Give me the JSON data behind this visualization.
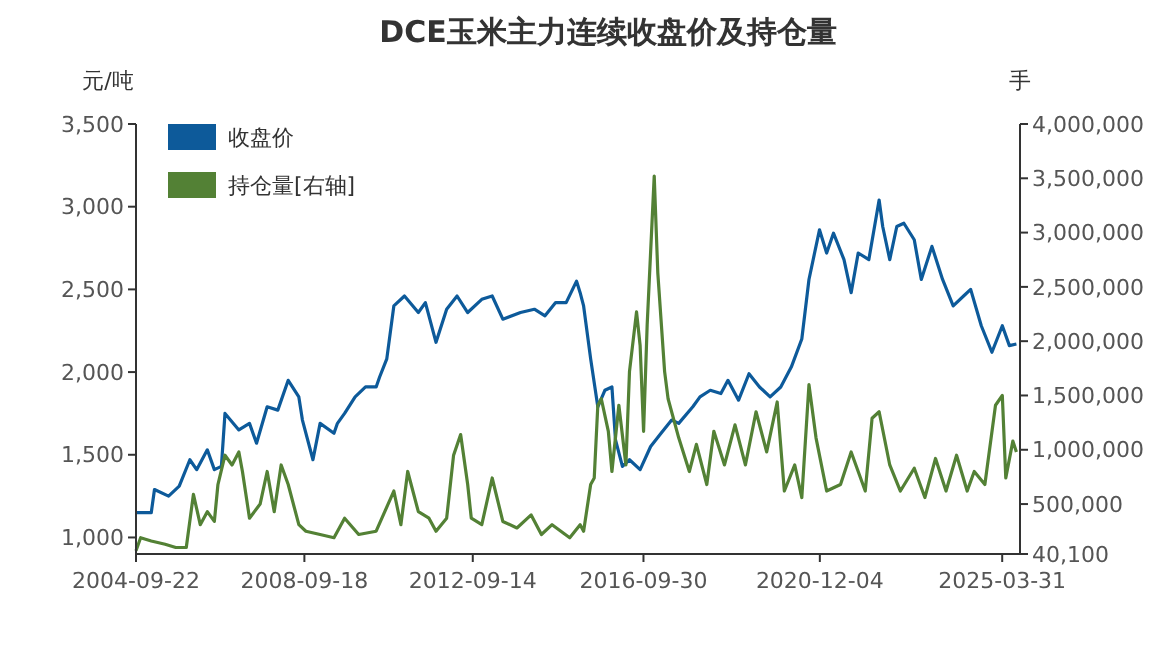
{
  "chart_data": {
    "type": "line",
    "title": "DCE玉米主力连续收盘价及持仓量",
    "ylabel": "元/吨",
    "y2label": "手",
    "legend": "top left",
    "xlim": [
      "2004-09-22",
      "2025-09-01"
    ],
    "xticks": [
      "2004-09-22",
      "2008-09-18",
      "2012-09-14",
      "2016-09-30",
      "2020-12-04",
      "2025-03-31"
    ],
    "ylim": [
      900,
      3500
    ],
    "yticks": [
      {
        "value": 1000,
        "label": "1,000"
      },
      {
        "value": 1500,
        "label": "1,500"
      },
      {
        "value": 2000,
        "label": "2,000"
      },
      {
        "value": 2500,
        "label": "2,500"
      },
      {
        "value": 3000,
        "label": "3,000"
      },
      {
        "value": 3500,
        "label": "3,500"
      }
    ],
    "y2lim": [
      40100,
      4000000
    ],
    "y2ticks": [
      {
        "value": 40100,
        "label": "40,100"
      },
      {
        "value": 500000,
        "label": "500,000"
      },
      {
        "value": 1000000,
        "label": "1,000,000"
      },
      {
        "value": 1500000,
        "label": "1,500,000"
      },
      {
        "value": 2000000,
        "label": "2,000,000"
      },
      {
        "value": 2500000,
        "label": "2,500,000"
      },
      {
        "value": 3000000,
        "label": "3,000,000"
      },
      {
        "value": 3500000,
        "label": "3,500,000"
      },
      {
        "value": 4000000,
        "label": "4,000,000"
      }
    ],
    "series": [
      {
        "name": "收盘价",
        "color": "#0d5a9a",
        "x": [
          "2004-09-22",
          "2005-02",
          "2005-03",
          "2005-07",
          "2005-10",
          "2006-01",
          "2006-03",
          "2006-06",
          "2006-08",
          "2006-10",
          "2006-11",
          "2007-03",
          "2007-06",
          "2007-08",
          "2007-11",
          "2008-02",
          "2008-05",
          "2008-08",
          "2008-09",
          "2008-12",
          "2009-02",
          "2009-06",
          "2009-07",
          "2009-09",
          "2009-12",
          "2010-03",
          "2010-06",
          "2010-07",
          "2010-09",
          "2010-11",
          "2011-02",
          "2011-06",
          "2011-08",
          "2011-11",
          "2012-02",
          "2012-05",
          "2012-08",
          "2012-12",
          "2013-03",
          "2013-06",
          "2013-11",
          "2014-03",
          "2014-06",
          "2014-09",
          "2014-12",
          "2015-03",
          "2015-04",
          "2015-05",
          "2015-07",
          "2015-09",
          "2015-11",
          "2016-01",
          "2016-02",
          "2016-04",
          "2016-06",
          "2016-09",
          "2016-12",
          "2017-03",
          "2017-06",
          "2017-08",
          "2017-12",
          "2018-02",
          "2018-05",
          "2018-08",
          "2018-10",
          "2019-01",
          "2019-04",
          "2019-07",
          "2019-10",
          "2020-01",
          "2020-04",
          "2020-07",
          "2020-09",
          "2020-12",
          "2021-02",
          "2021-04",
          "2021-07",
          "2021-09",
          "2021-11",
          "2022-02",
          "2022-05",
          "2022-06",
          "2022-08",
          "2022-10",
          "2022-12",
          "2023-03",
          "2023-05",
          "2023-08",
          "2023-11",
          "2024-02",
          "2024-05",
          "2024-07",
          "2024-10",
          "2025-01",
          "2025-04",
          "2025-06",
          "2025-08"
        ],
        "values": [
          1150,
          1150,
          1290,
          1250,
          1310,
          1470,
          1410,
          1530,
          1410,
          1430,
          1750,
          1650,
          1690,
          1570,
          1790,
          1770,
          1950,
          1850,
          1710,
          1470,
          1690,
          1630,
          1690,
          1750,
          1850,
          1910,
          1910,
          1970,
          2080,
          2400,
          2460,
          2360,
          2420,
          2180,
          2380,
          2460,
          2360,
          2440,
          2460,
          2320,
          2360,
          2380,
          2340,
          2420,
          2420,
          2550,
          2480,
          2400,
          2080,
          1790,
          1890,
          1910,
          1590,
          1430,
          1470,
          1410,
          1550,
          1630,
          1710,
          1690,
          1790,
          1850,
          1890,
          1870,
          1950,
          1830,
          1990,
          1910,
          1850,
          1910,
          2030,
          2200,
          2560,
          2860,
          2720,
          2840,
          2680,
          2480,
          2720,
          2680,
          3040,
          2880,
          2680,
          2880,
          2900,
          2800,
          2560,
          2760,
          2560,
          2400,
          2460,
          2500,
          2280,
          2120,
          2280,
          2160,
          2170
        ]
      },
      {
        "name": "持仓量[右轴]",
        "color": "#538135",
        "axis": "y2",
        "x": [
          "2004-09-22",
          "2004-11",
          "2005-02",
          "2005-06",
          "2005-09",
          "2005-12",
          "2006-02",
          "2006-04",
          "2006-06",
          "2006-08",
          "2006-09",
          "2006-11",
          "2007-01",
          "2007-03",
          "2007-04",
          "2007-06",
          "2007-09",
          "2007-11",
          "2008-01",
          "2008-03",
          "2008-05",
          "2008-08",
          "2008-10",
          "2009-02",
          "2009-06",
          "2009-09",
          "2010-01",
          "2010-06",
          "2010-11",
          "2011-01",
          "2011-03",
          "2011-06",
          "2011-09",
          "2011-11",
          "2012-02",
          "2012-04",
          "2012-06",
          "2012-08",
          "2012-09",
          "2012-12",
          "2013-03",
          "2013-06",
          "2013-10",
          "2014-02",
          "2014-05",
          "2014-08",
          "2015-01",
          "2015-04",
          "2015-05",
          "2015-07",
          "2015-08",
          "2015-09",
          "2015-10",
          "2015-12",
          "2016-01",
          "2016-03",
          "2016-05",
          "2016-06",
          "2016-08",
          "2016-09",
          "2016-10",
          "2016-11",
          "2017-01",
          "2017-02",
          "2017-04",
          "2017-05",
          "2017-08",
          "2017-11",
          "2018-01",
          "2018-04",
          "2018-06",
          "2018-09",
          "2018-12",
          "2019-03",
          "2019-06",
          "2019-09",
          "2019-12",
          "2020-02",
          "2020-05",
          "2020-07",
          "2020-09",
          "2020-11",
          "2021-02",
          "2021-06",
          "2021-09",
          "2022-01",
          "2022-03",
          "2022-05",
          "2022-08",
          "2022-11",
          "2023-03",
          "2023-06",
          "2023-09",
          "2023-12",
          "2024-03",
          "2024-06",
          "2024-08",
          "2024-11",
          "2025-02",
          "2025-04",
          "2025-05",
          "2025-07",
          "2025-08"
        ],
        "values": [
          70000,
          190000,
          160000,
          130000,
          100000,
          100000,
          590000,
          310000,
          430000,
          340000,
          680000,
          950000,
          860000,
          980000,
          800000,
          370000,
          500000,
          800000,
          430000,
          860000,
          680000,
          310000,
          250000,
          220000,
          190000,
          370000,
          220000,
          250000,
          620000,
          310000,
          800000,
          430000,
          370000,
          250000,
          370000,
          950000,
          1140000,
          680000,
          370000,
          310000,
          740000,
          340000,
          280000,
          400000,
          220000,
          310000,
          190000,
          310000,
          250000,
          680000,
          740000,
          1410000,
          1470000,
          1170000,
          800000,
          1410000,
          860000,
          1720000,
          2270000,
          1960000,
          1170000,
          2150000,
          3520000,
          2630000,
          1720000,
          1470000,
          1110000,
          800000,
          1050000,
          680000,
          1170000,
          860000,
          1230000,
          860000,
          1350000,
          980000,
          1440000,
          620000,
          860000,
          560000,
          1600000,
          1110000,
          620000,
          680000,
          980000,
          620000,
          1290000,
          1350000,
          860000,
          620000,
          830000,
          560000,
          920000,
          620000,
          950000,
          620000,
          800000,
          680000,
          1410000,
          1500000,
          740000,
          1080000,
          980000
        ]
      }
    ]
  }
}
